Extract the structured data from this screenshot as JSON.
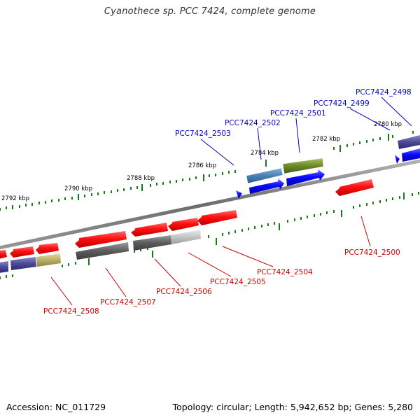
{
  "title": "Cyanothece sp. PCC 7424, complete genome",
  "accession_text": "Accession: NC_011729",
  "summary_text": "Topology: circular; Length: 5,942,652 bp; Genes: 5,280",
  "ruler_labels": [
    "2792 kbp",
    "2790 kbp",
    "2788 kbp",
    "2786 kbp",
    "2784 kbp",
    "2782 kbp",
    "2780 kbp"
  ],
  "top_gene_labels": [
    "PCC7424_2503",
    "PCC7424_2502",
    "PCC7424_2501",
    "PCC7424_2499",
    "PCC7424_2498"
  ],
  "bottom_gene_labels": [
    "PCC7424_2508",
    "PCC7424_2507",
    "PCC7424_2506",
    "PCC7424_2505",
    "PCC7424_2504",
    "PCC7424_2500"
  ],
  "colors": {
    "forward_strand": "#0000ee",
    "reverse_strand": "#ee0000",
    "top_label": "#0000cc",
    "bottom_label": "#cc0000",
    "tick": "#1a7a1a",
    "backbone": "#8a8a8a"
  }
}
